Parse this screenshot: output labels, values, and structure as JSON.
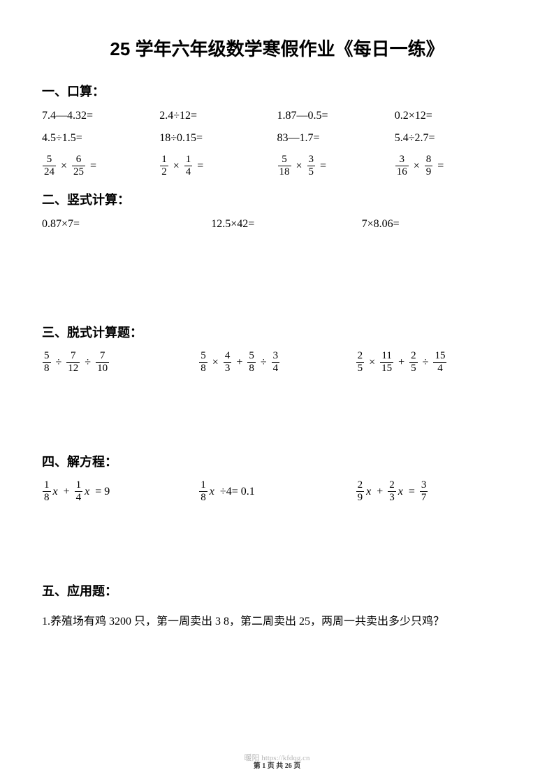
{
  "title": "25 学年六年级数学寒假作业《每日一练》",
  "sections": {
    "s1": {
      "header": "一、口算：",
      "r1": {
        "c1": "7.4—4.32=",
        "c2": "2.4÷12=",
        "c3": "1.87—0.5=",
        "c4": "0.2×12="
      },
      "r2": {
        "c1": "4.5÷1.5=",
        "c2": "18÷0.15=",
        "c3": "83—1.7=",
        "c4": "5.4÷2.7="
      },
      "r3": {
        "f1": {
          "an": "5",
          "ad": "24",
          "bn": "6",
          "bd": "25",
          "op": "×"
        },
        "f2": {
          "an": "1",
          "ad": "2",
          "bn": "1",
          "bd": "4",
          "op": "×"
        },
        "f3": {
          "an": "5",
          "ad": "18",
          "bn": "3",
          "bd": "5",
          "op": "×"
        },
        "f4": {
          "an": "3",
          "ad": "16",
          "bn": "8",
          "bd": "9",
          "op": "×"
        }
      }
    },
    "s2": {
      "header": "二、竖式计算：",
      "r1": {
        "c1": "0.87×7=",
        "c2": "12.5×42=",
        "c3": "7×8.06="
      }
    },
    "s3": {
      "header": "三、脱式计算题：",
      "e1": {
        "a": {
          "n": "5",
          "d": "8"
        },
        "op1": "÷",
        "b": {
          "n": "7",
          "d": "12"
        },
        "op2": "÷",
        "c": {
          "n": "7",
          "d": "10"
        }
      },
      "e2": {
        "a": {
          "n": "5",
          "d": "8"
        },
        "op1": "×",
        "b": {
          "n": "4",
          "d": "3"
        },
        "op2": "+",
        "c": {
          "n": "5",
          "d": "8"
        },
        "op3": "÷",
        "dd": {
          "n": "3",
          "d": "4"
        }
      },
      "e3": {
        "a": {
          "n": "2",
          "d": "5"
        },
        "op1": "×",
        "b": {
          "n": "11",
          "d": "15"
        },
        "op2": "+",
        "c": {
          "n": "2",
          "d": "5"
        },
        "op3": "÷",
        "dd": {
          "n": "15",
          "d": "4"
        }
      }
    },
    "s4": {
      "header": "四、解方程：",
      "e1": {
        "a": {
          "n": "1",
          "d": "8"
        },
        "b": {
          "n": "1",
          "d": "4"
        },
        "rhs": "9",
        "mid": "+"
      },
      "e2": {
        "a": {
          "n": "1",
          "d": "8"
        },
        "rhs": "0.1",
        "mid": "÷4="
      },
      "e3": {
        "a": {
          "n": "2",
          "d": "9"
        },
        "b": {
          "n": "2",
          "d": "3"
        },
        "c": {
          "n": "3",
          "d": "7"
        },
        "mid": "+"
      }
    },
    "s5": {
      "header": "五、应用题：",
      "text": "1.养殖场有鸡 3200 只，第一周卖出 3 8，第二周卖出 25，两周一共卖出多少只鸡？"
    }
  },
  "watermark": "暖阳 https://kfdqg.cn",
  "pagefoot": "第 1 页 共 26 页",
  "eq": "=",
  "x": "x"
}
